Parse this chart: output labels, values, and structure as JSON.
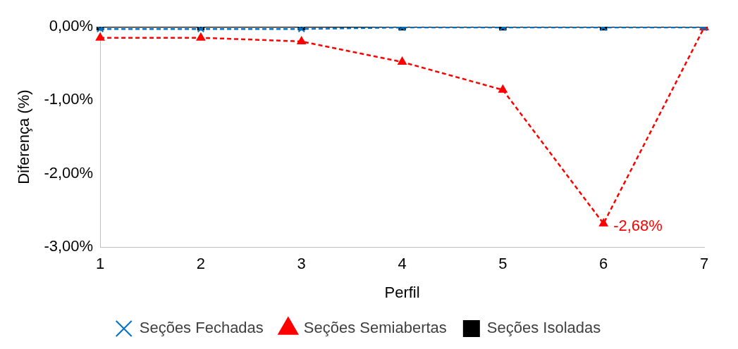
{
  "chart_data": {
    "type": "line",
    "xlabel": "Perfil",
    "ylabel": "Diferença (%)",
    "categories": [
      "1",
      "2",
      "3",
      "4",
      "5",
      "6",
      "7"
    ],
    "ylim": [
      -3,
      0
    ],
    "yticks": [
      {
        "value": 0,
        "label": "0,00%"
      },
      {
        "value": -1,
        "label": "-1,00%"
      },
      {
        "value": -2,
        "label": "-2,00%"
      },
      {
        "value": -3,
        "label": "-3,00%"
      }
    ],
    "grid": false,
    "legend": "bottom",
    "series": [
      {
        "name": "Seções Fechadas",
        "color": "#0070c0",
        "marker": "cross",
        "line_style": "dashed",
        "values": [
          -0.03,
          -0.03,
          -0.03,
          -0.01,
          -0.01,
          -0.01,
          -0.01
        ]
      },
      {
        "name": "Seções Semiabertas",
        "color": "#ff0000",
        "marker": "triangle",
        "line_style": "dashed",
        "values": [
          -0.15,
          -0.15,
          -0.2,
          -0.48,
          -0.86,
          -2.68,
          -0.01
        ],
        "value_labels": [
          null,
          null,
          null,
          null,
          null,
          "-2,68%",
          null
        ]
      },
      {
        "name": "Seções Isoladas",
        "color": "#000000",
        "marker": "square",
        "line_style": "solid",
        "values": [
          0,
          0,
          0,
          0,
          0,
          0,
          0
        ]
      }
    ]
  }
}
